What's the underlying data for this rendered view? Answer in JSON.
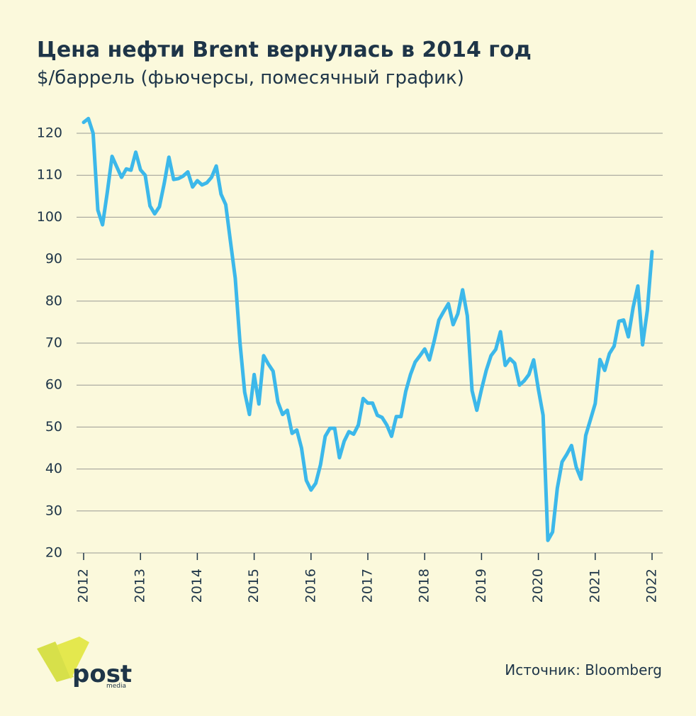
{
  "chart_data": {
    "type": "line",
    "title": "Цена нефти Brent вернулась в 2014 год",
    "subtitle": "$/баррель (фьючерсы, помесячный график)",
    "source": "Источник: Bloomberg",
    "logo": {
      "text": "post",
      "sub": "media"
    },
    "x": [
      2012,
      2012.083,
      2012.167,
      2012.25,
      2012.333,
      2012.417,
      2012.5,
      2012.583,
      2012.667,
      2012.75,
      2012.833,
      2012.917,
      2013,
      2013.083,
      2013.167,
      2013.25,
      2013.333,
      2013.417,
      2013.5,
      2013.583,
      2013.667,
      2013.75,
      2013.833,
      2013.917,
      2014,
      2014.083,
      2014.167,
      2014.25,
      2014.333,
      2014.417,
      2014.5,
      2014.583,
      2014.667,
      2014.75,
      2014.833,
      2014.917,
      2015,
      2015.083,
      2015.167,
      2015.25,
      2015.333,
      2015.417,
      2015.5,
      2015.583,
      2015.667,
      2015.75,
      2015.833,
      2015.917,
      2016,
      2016.083,
      2016.167,
      2016.25,
      2016.333,
      2016.417,
      2016.5,
      2016.583,
      2016.667,
      2016.75,
      2016.833,
      2016.917,
      2017,
      2017.083,
      2017.167,
      2017.25,
      2017.333,
      2017.417,
      2017.5,
      2017.583,
      2017.667,
      2017.75,
      2017.833,
      2017.917,
      2018,
      2018.083,
      2018.167,
      2018.25,
      2018.333,
      2018.417,
      2018.5,
      2018.583,
      2018.667,
      2018.75,
      2018.833,
      2018.917,
      2019,
      2019.083,
      2019.167,
      2019.25,
      2019.333,
      2019.417,
      2019.5,
      2019.583,
      2019.667,
      2019.75,
      2019.833,
      2019.917,
      2020,
      2020.083,
      2020.167,
      2020.25,
      2020.333,
      2020.417,
      2020.5,
      2020.583,
      2020.667,
      2020.75,
      2020.833,
      2020.917,
      2021,
      2021.083,
      2021.167,
      2021.25,
      2021.333,
      2021.417,
      2021.5,
      2021.583,
      2021.667,
      2021.75,
      2021.833,
      2021.917,
      2022
    ],
    "series": [
      {
        "name": "Brent",
        "color": "#3cb8ea",
        "values": [
          122.6,
          123.5,
          120,
          101.7,
          98.2,
          106,
          114.5,
          112,
          109.5,
          111.5,
          111.2,
          115.5,
          111.3,
          110,
          102.7,
          100.8,
          102.5,
          108,
          114.3,
          109,
          109.2,
          109.8,
          110.8,
          107.2,
          108.7,
          107.7,
          108.2,
          109.5,
          112.2,
          105.5,
          103,
          94.2,
          85.5,
          70.2,
          58.3,
          53,
          62.5,
          55.5,
          67,
          65,
          63.3,
          56,
          53,
          54,
          48.5,
          49.3,
          45,
          37.3,
          35,
          36.6,
          41,
          47.8,
          49.7,
          49.7,
          42.7,
          46.6,
          48.9,
          48.3,
          50.5,
          56.8,
          55.7,
          55.7,
          52.8,
          52.3,
          50.5,
          47.8,
          52.5,
          52.5,
          58.5,
          62.5,
          65.5,
          67,
          68.6,
          66,
          70.5,
          75.5,
          77.5,
          79.4,
          74.4,
          77,
          82.7,
          76.5,
          58.7,
          54,
          59,
          63.5,
          67,
          68.5,
          72.7,
          64.7,
          66.3,
          65.2,
          60,
          61,
          62.5,
          66,
          59,
          52.8,
          23,
          25,
          35.4,
          41.7,
          43.5,
          45.6,
          40.4,
          37.6,
          48,
          51.8,
          55.6,
          66.1,
          63.5,
          67.5,
          69.3,
          75.2,
          75.5,
          71.5,
          78.5,
          83.6,
          69.6,
          77.8,
          91.8
        ]
      }
    ],
    "xlim": [
      2012,
      2022
    ],
    "xticks": [
      2012,
      2013,
      2014,
      2015,
      2016,
      2017,
      2018,
      2019,
      2020,
      2021,
      2022
    ],
    "ylim": [
      20,
      120
    ],
    "yticks": [
      20,
      30,
      40,
      50,
      60,
      70,
      80,
      90,
      100,
      110,
      120
    ],
    "grid": true
  }
}
